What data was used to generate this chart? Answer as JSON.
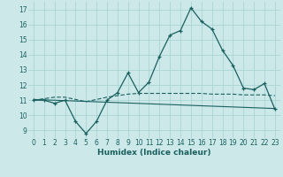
{
  "xlabel": "Humidex (Indice chaleur)",
  "xlim": [
    -0.5,
    23.5
  ],
  "ylim": [
    8.5,
    17.5
  ],
  "yticks": [
    9,
    10,
    11,
    12,
    13,
    14,
    15,
    16,
    17
  ],
  "xticks": [
    0,
    1,
    2,
    3,
    4,
    5,
    6,
    7,
    8,
    9,
    10,
    11,
    12,
    13,
    14,
    15,
    16,
    17,
    18,
    19,
    20,
    21,
    22,
    23
  ],
  "bg_color": "#cce8e8",
  "line_color": "#1a6060",
  "grid_color": "#aad4d4",
  "line1_x": [
    0,
    1,
    2,
    3,
    4,
    5,
    6,
    7,
    8,
    9,
    10,
    11,
    12,
    13,
    14,
    15,
    16,
    17,
    18,
    19,
    20,
    21,
    22,
    23
  ],
  "line1_y": [
    11.0,
    11.0,
    10.8,
    11.0,
    9.6,
    8.8,
    9.6,
    11.0,
    11.5,
    12.8,
    11.5,
    12.2,
    13.9,
    15.3,
    15.6,
    17.1,
    16.2,
    15.7,
    14.3,
    13.3,
    11.8,
    11.7,
    12.1,
    10.4
  ],
  "line2_x": [
    0,
    1,
    2,
    3,
    4,
    5,
    6,
    7,
    8,
    9,
    10,
    11,
    12,
    13,
    14,
    15,
    16,
    17,
    18,
    19,
    20,
    21,
    22,
    23
  ],
  "line2_y": [
    11.0,
    11.1,
    11.2,
    11.2,
    11.05,
    10.9,
    11.05,
    11.2,
    11.3,
    11.4,
    11.45,
    11.45,
    11.45,
    11.45,
    11.45,
    11.45,
    11.45,
    11.4,
    11.4,
    11.4,
    11.35,
    11.35,
    11.35,
    11.3
  ],
  "line3_x": [
    0,
    23
  ],
  "line3_y": [
    11.05,
    10.45
  ]
}
